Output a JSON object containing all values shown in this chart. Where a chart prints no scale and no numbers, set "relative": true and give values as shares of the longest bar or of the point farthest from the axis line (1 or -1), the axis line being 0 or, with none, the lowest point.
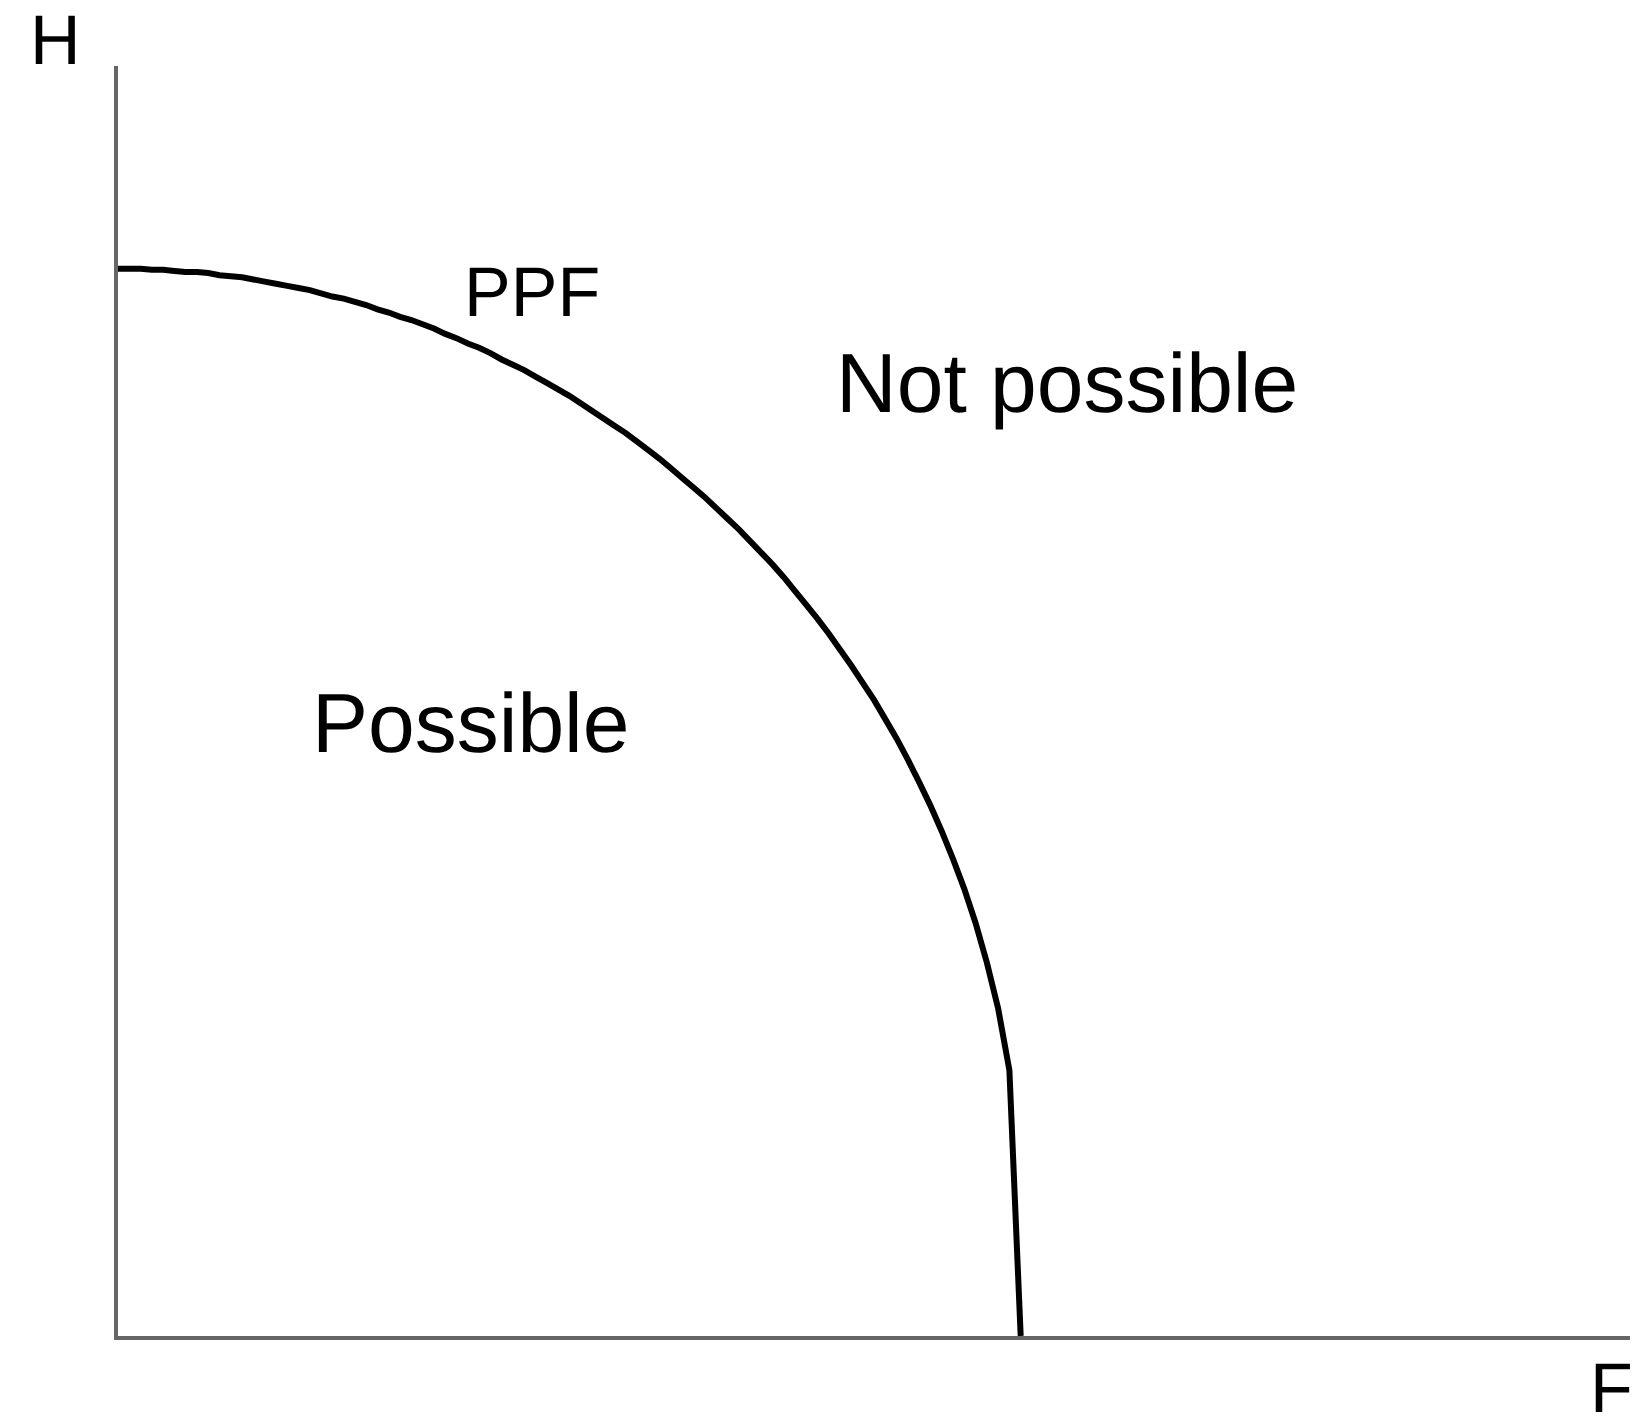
{
  "chart_data": {
    "type": "line",
    "relative": true,
    "xlabel": "F",
    "ylabel": "H",
    "categories": [
      null,
      null,
      null,
      null,
      null,
      null,
      null,
      null,
      null,
      null,
      null,
      null,
      null,
      null,
      null,
      null,
      null,
      null,
      null,
      null,
      null,
      null,
      null,
      null,
      null,
      null,
      null,
      null,
      null,
      null,
      null,
      null,
      null,
      null,
      null,
      null,
      null,
      null,
      null,
      null,
      null,
      null,
      null,
      null,
      null,
      null,
      null,
      null,
      null,
      null,
      null,
      null,
      null,
      null,
      null,
      null,
      null,
      null,
      null,
      null,
      null,
      null,
      null,
      null,
      null,
      null,
      null,
      null,
      null,
      null,
      null,
      null,
      null,
      null,
      null,
      null,
      null,
      null,
      null,
      null,
      null,
      null,
      null,
      null,
      null,
      null,
      null,
      null,
      null,
      null,
      null,
      null,
      null,
      null,
      null,
      null,
      null,
      null,
      null,
      null,
      null,
      null,
      null,
      null,
      null,
      null,
      null,
      null,
      null,
      null,
      null,
      null,
      null,
      null,
      null,
      null,
      null,
      null,
      null,
      null,
      null,
      null,
      null,
      null,
      null,
      null,
      null,
      null,
      null,
      null,
      null,
      null,
      null,
      null,
      null
    ],
    "series": [
      {
        "name": "PPF",
        "color": "#000000",
        "values": [
          1,
          1,
          1,
          0.999,
          0.999,
          0.998,
          0.997,
          0.997,
          0.996,
          0.994,
          0.993,
          0.992,
          0.99,
          0.988,
          0.986,
          0.984,
          0.982,
          0.98,
          0.977,
          0.974,
          0.972,
          0.969,
          0.966,
          0.962,
          0.959,
          0.955,
          0.952,
          0.948,
          0.944,
          0.939,
          0.935,
          0.93,
          0.926,
          0.921,
          0.915,
          0.91,
          0.905,
          0.899,
          0.893,
          0.887,
          0.881,
          0.874,
          0.867,
          0.86,
          0.853,
          0.846,
          0.838,
          0.83,
          0.822,
          0.813,
          0.804,
          0.795,
          0.786,
          0.776,
          0.766,
          0.756,
          0.745,
          0.734,
          0.723,
          0.711,
          0.698,
          0.685,
          0.672,
          0.658,
          0.643,
          0.628,
          0.612,
          0.596,
          0.578,
          0.56,
          0.54,
          0.519,
          0.497,
          0.473,
          0.447,
          0.419,
          0.387,
          0.35,
          0.307,
          0.249,
          0,
          null,
          null,
          null,
          null,
          null,
          null,
          null,
          null,
          null,
          null,
          null,
          null,
          null,
          null,
          null,
          null,
          null,
          null,
          null,
          null,
          null,
          null,
          null,
          null,
          null,
          null,
          null,
          null,
          null,
          null,
          null,
          null,
          null,
          null,
          null,
          null,
          null,
          null,
          null,
          null,
          null,
          null,
          null,
          null,
          null,
          null,
          null,
          null,
          null,
          null,
          null,
          null,
          null,
          null
        ]
      }
    ],
    "annotations": [
      "Possible",
      "Not possible"
    ],
    "legend": false,
    "marker": "none",
    "line_style": "solid"
  }
}
